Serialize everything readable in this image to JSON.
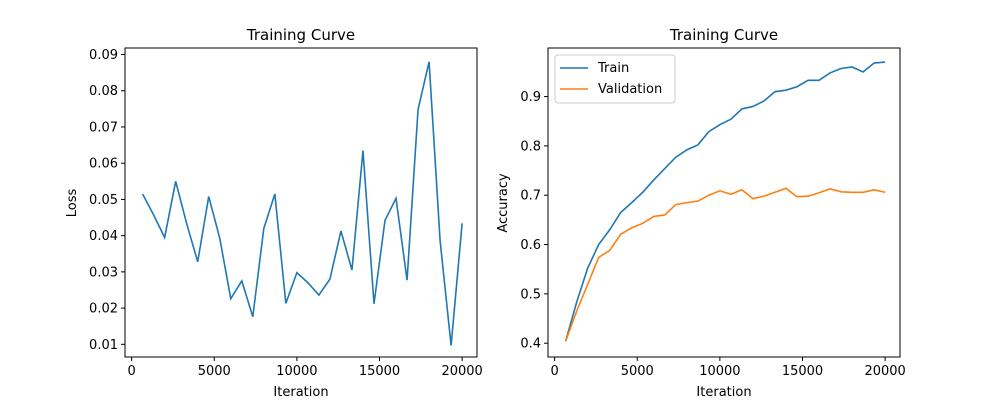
{
  "chart_data": [
    {
      "type": "line",
      "title": "Training Curve",
      "xlabel": "Iteration",
      "ylabel": "Loss",
      "xlim": [
        -400,
        20900
      ],
      "ylim": [
        0.0065,
        0.0918
      ],
      "xticks": [
        0,
        5000,
        10000,
        15000,
        20000
      ],
      "yticks": [
        0.01,
        0.02,
        0.03,
        0.04,
        0.05,
        0.06,
        0.07,
        0.08,
        0.09
      ],
      "xtick_labels": [
        "0",
        "5000",
        "10000",
        "15000",
        "20000"
      ],
      "ytick_labels": [
        "0.01",
        "0.02",
        "0.03",
        "0.04",
        "0.05",
        "0.06",
        "0.07",
        "0.08",
        "0.09"
      ],
      "series": [
        {
          "name": "Loss",
          "color": "#1f77b4",
          "x": [
            667,
            1333,
            2000,
            2667,
            3333,
            4000,
            4667,
            5333,
            6000,
            6667,
            7333,
            8000,
            8667,
            9333,
            10000,
            10667,
            11333,
            12000,
            12667,
            13333,
            14000,
            14667,
            15333,
            16000,
            16667,
            17333,
            18000,
            18667,
            19333,
            20000
          ],
          "y": [
            0.0515,
            0.0457,
            0.0395,
            0.055,
            0.0433,
            0.0328,
            0.0508,
            0.0393,
            0.0226,
            0.0275,
            0.0176,
            0.042,
            0.0515,
            0.0213,
            0.0298,
            0.027,
            0.0236,
            0.028,
            0.0413,
            0.0305,
            0.0635,
            0.0212,
            0.0442,
            0.0503,
            0.0277,
            0.0748,
            0.088,
            0.0386,
            0.0097,
            0.0434
          ]
        }
      ]
    },
    {
      "type": "line",
      "title": "Training Curve",
      "xlabel": "Iteration",
      "ylabel": "Accuracy",
      "xlim": [
        -400,
        20900
      ],
      "ylim": [
        0.372,
        0.9985
      ],
      "xticks": [
        0,
        5000,
        10000,
        15000,
        20000
      ],
      "yticks": [
        0.4,
        0.5,
        0.6,
        0.7,
        0.8,
        0.9
      ],
      "xtick_labels": [
        "0",
        "5000",
        "10000",
        "15000",
        "20000"
      ],
      "ytick_labels": [
        "0.4",
        "0.5",
        "0.6",
        "0.7",
        "0.8",
        "0.9"
      ],
      "legend_position": "top-left",
      "series": [
        {
          "name": "Train",
          "color": "#1f77b4",
          "x": [
            667,
            1333,
            2000,
            2667,
            3333,
            4000,
            4667,
            5333,
            6000,
            6667,
            7333,
            8000,
            8667,
            9333,
            10000,
            10667,
            11333,
            12000,
            12667,
            13333,
            14000,
            14667,
            15333,
            16000,
            16667,
            17333,
            18000,
            18667,
            19333,
            20000
          ],
          "y": [
            0.404,
            0.483,
            0.552,
            0.6,
            0.63,
            0.665,
            0.685,
            0.706,
            0.731,
            0.754,
            0.777,
            0.792,
            0.802,
            0.829,
            0.843,
            0.854,
            0.875,
            0.88,
            0.891,
            0.91,
            0.913,
            0.92,
            0.933,
            0.933,
            0.948,
            0.957,
            0.96,
            0.95,
            0.968,
            0.97
          ]
        },
        {
          "name": "Validation",
          "color": "#ff7f0e",
          "x": [
            667,
            1333,
            2000,
            2667,
            3333,
            4000,
            4667,
            5333,
            6000,
            6667,
            7333,
            8000,
            8667,
            9333,
            10000,
            10667,
            11333,
            12000,
            12667,
            13333,
            14000,
            14667,
            15333,
            16000,
            16667,
            17333,
            18000,
            18667,
            19333,
            20000
          ],
          "y": [
            0.404,
            0.465,
            0.519,
            0.574,
            0.588,
            0.621,
            0.634,
            0.643,
            0.657,
            0.66,
            0.681,
            0.685,
            0.688,
            0.7,
            0.709,
            0.702,
            0.711,
            0.693,
            0.698,
            0.706,
            0.714,
            0.697,
            0.698,
            0.705,
            0.713,
            0.707,
            0.706,
            0.706,
            0.711,
            0.706
          ]
        }
      ]
    }
  ]
}
